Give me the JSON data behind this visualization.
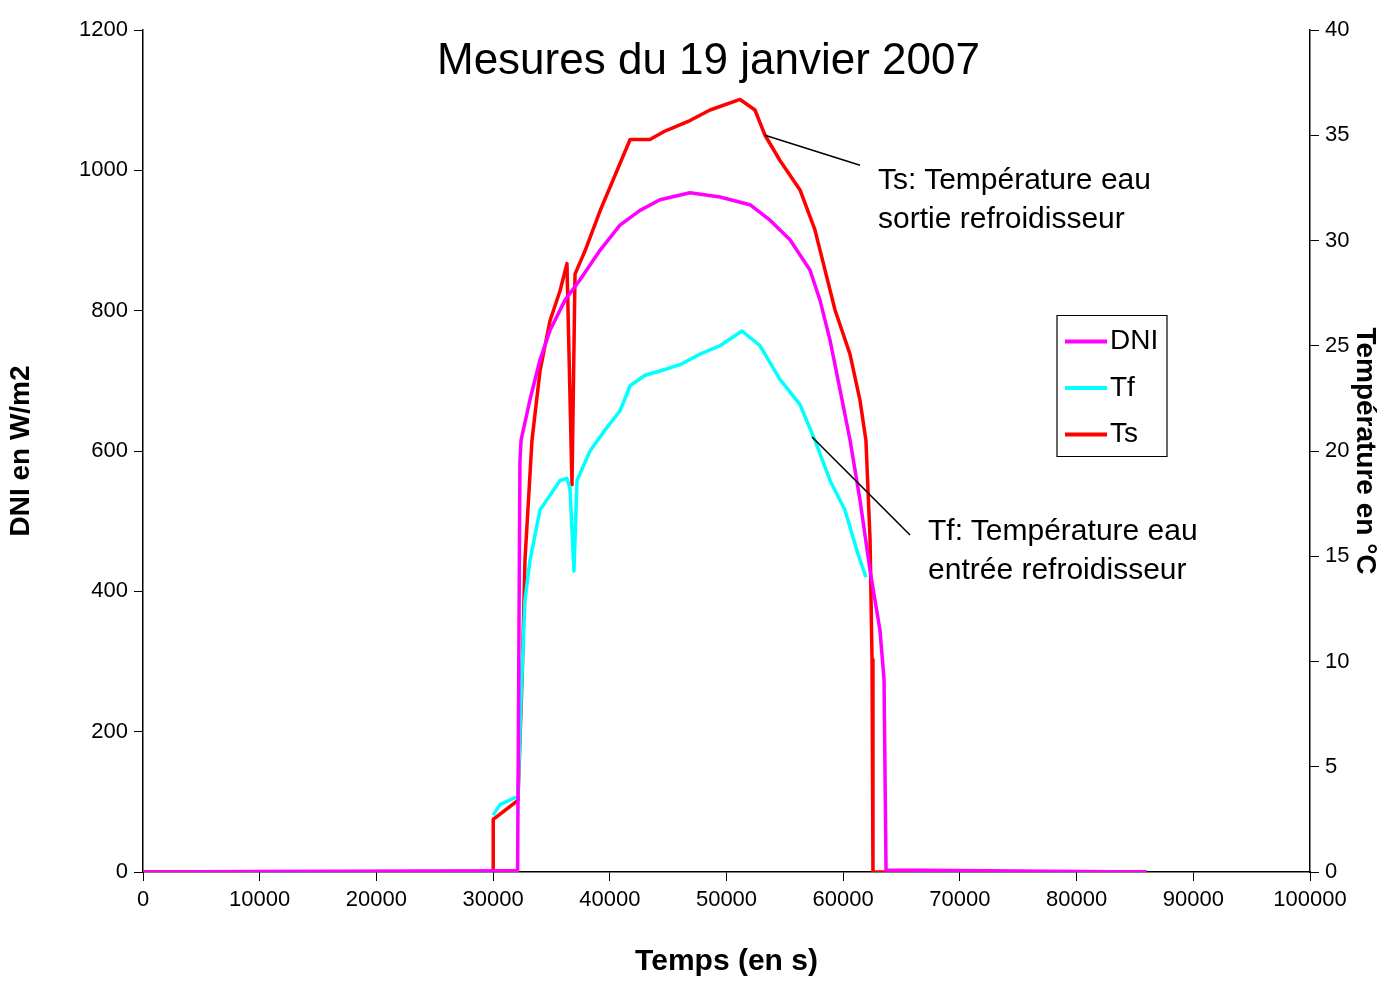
{
  "chart_data": {
    "type": "line",
    "title": "Mesures du 19 janvier 2007",
    "xlabel": "Temps (en s)",
    "ylabel": "DNI en W/m2",
    "y2label": "Température en °C",
    "xlim": [
      0,
      100000
    ],
    "xticks": [
      0,
      10000,
      20000,
      30000,
      40000,
      50000,
      60000,
      70000,
      80000,
      90000,
      100000
    ],
    "ylim": [
      0,
      1200
    ],
    "yticks": [
      0,
      200,
      400,
      600,
      800,
      1000,
      1200
    ],
    "y2lim": [
      0,
      40
    ],
    "y2ticks": [
      0,
      5,
      10,
      15,
      20,
      25,
      30,
      35,
      40
    ],
    "grid": false,
    "legend": "right",
    "marker": "none",
    "line_style": "solid",
    "annotations": [
      {
        "text": "Ts: Température eau sortie refroidisseur",
        "x": 53300,
        "y": 1050
      },
      {
        "text": "Tf: Température eau entrée refroidisseur",
        "x": 57330,
        "y": 620
      }
    ],
    "series": [
      {
        "name": "DNI",
        "color": "#ff00ff",
        "x": [
          0,
          32100,
          32300,
          32400,
          33160,
          34020,
          34880,
          36160,
          37450,
          39160,
          40870,
          42590,
          44300,
          46870,
          49440,
          52010,
          53730,
          55440,
          57150,
          58010,
          58870,
          59730,
          60580,
          61440,
          62300,
          63150,
          63500,
          63670,
          86000
        ],
        "values": [
          0,
          2,
          585,
          616,
          673,
          730,
          772,
          815,
          844,
          886,
          922,
          943,
          958,
          968,
          962,
          951,
          929,
          901,
          858,
          815,
          758,
          687,
          616,
          530,
          430,
          345,
          274,
          3,
          0
        ]
      },
      {
        "name": "Tf",
        "color": "#00ffff",
        "axis": "y2",
        "x": [
          30000,
          30590,
          32130,
          32390,
          32730,
          33160,
          34020,
          34880,
          35730,
          36330,
          36590,
          36930,
          37190,
          38300,
          39590,
          40870,
          41740,
          43020,
          44300,
          46020,
          47730,
          49440,
          51330,
          52870,
          54580,
          56300,
          57580,
          58870,
          60150,
          61270,
          61950
        ],
        "values": [
          2.7,
          3.2,
          3.6,
          8.2,
          12.9,
          14.8,
          17.2,
          17.9,
          18.6,
          18.7,
          18.2,
          14.3,
          18.6,
          20.0,
          21.0,
          21.9,
          23.1,
          23.6,
          23.8,
          24.1,
          24.6,
          25.0,
          25.7,
          25.0,
          23.4,
          22.2,
          20.5,
          18.6,
          17.2,
          15.1,
          14.0
        ]
      },
      {
        "name": "Ts",
        "color": "#ff0000",
        "axis": "y2",
        "x": [
          0,
          30000,
          30010,
          32130,
          32500,
          32730,
          33330,
          34020,
          34880,
          35730,
          36330,
          36760,
          37020,
          37870,
          39160,
          40450,
          41740,
          43440,
          44730,
          46870,
          48590,
          51160,
          52440,
          53300,
          54580,
          56300,
          57580,
          58440,
          59300,
          60580,
          61440,
          61950,
          62300,
          62470,
          62550,
          86000
        ],
        "values": [
          0,
          0,
          2.5,
          3.4,
          9.5,
          14.8,
          20.5,
          23.8,
          26.2,
          27.6,
          28.9,
          18.4,
          28.4,
          29.5,
          31.4,
          33.1,
          34.8,
          34.8,
          35.2,
          35.7,
          36.2,
          36.7,
          36.2,
          35.0,
          33.8,
          32.4,
          30.5,
          28.6,
          26.7,
          24.6,
          22.4,
          20.5,
          15.8,
          10.1,
          0,
          0
        ]
      }
    ]
  }
}
